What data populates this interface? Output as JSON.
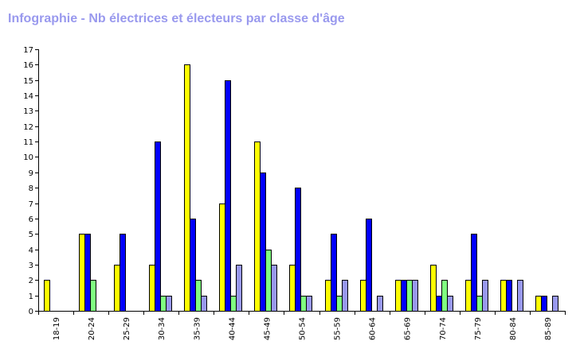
{
  "chart_data": {
    "type": "bar",
    "title": "Infographie - Nb électrices et électeurs par classe d'âge",
    "title_color": "#9999ee",
    "categories": [
      "18-19",
      "20-24",
      "25-29",
      "30-34",
      "35-39",
      "40-44",
      "45-49",
      "50-54",
      "55-59",
      "60-64",
      "65-69",
      "70-74",
      "75-79",
      "80-84",
      "85-89"
    ],
    "series": [
      {
        "color": "#ffff00",
        "values": [
          2,
          5,
          3,
          3,
          16,
          7,
          11,
          3,
          2,
          2,
          2,
          3,
          2,
          2,
          1
        ]
      },
      {
        "color": "#0000ff",
        "values": [
          0,
          5,
          5,
          11,
          6,
          15,
          9,
          8,
          5,
          6,
          2,
          1,
          5,
          2,
          1
        ]
      },
      {
        "color": "#80ff80",
        "values": [
          0,
          2,
          0,
          1,
          2,
          1,
          4,
          1,
          1,
          0,
          2,
          2,
          1,
          0,
          0
        ]
      },
      {
        "color": "#9999ee",
        "values": [
          0,
          0,
          0,
          1,
          1,
          3,
          3,
          1,
          2,
          1,
          2,
          1,
          2,
          2,
          1
        ]
      }
    ],
    "y_ticks": [
      "0",
      "1",
      "2",
      "3",
      "4",
      "5",
      "6",
      "7",
      "8",
      "9",
      "10",
      "11",
      "12",
      "13",
      "14",
      "15",
      "16",
      "17"
    ],
    "ylim": [
      0,
      17
    ],
    "xlabel": "",
    "ylabel": "",
    "grid": false,
    "legend": "none"
  }
}
